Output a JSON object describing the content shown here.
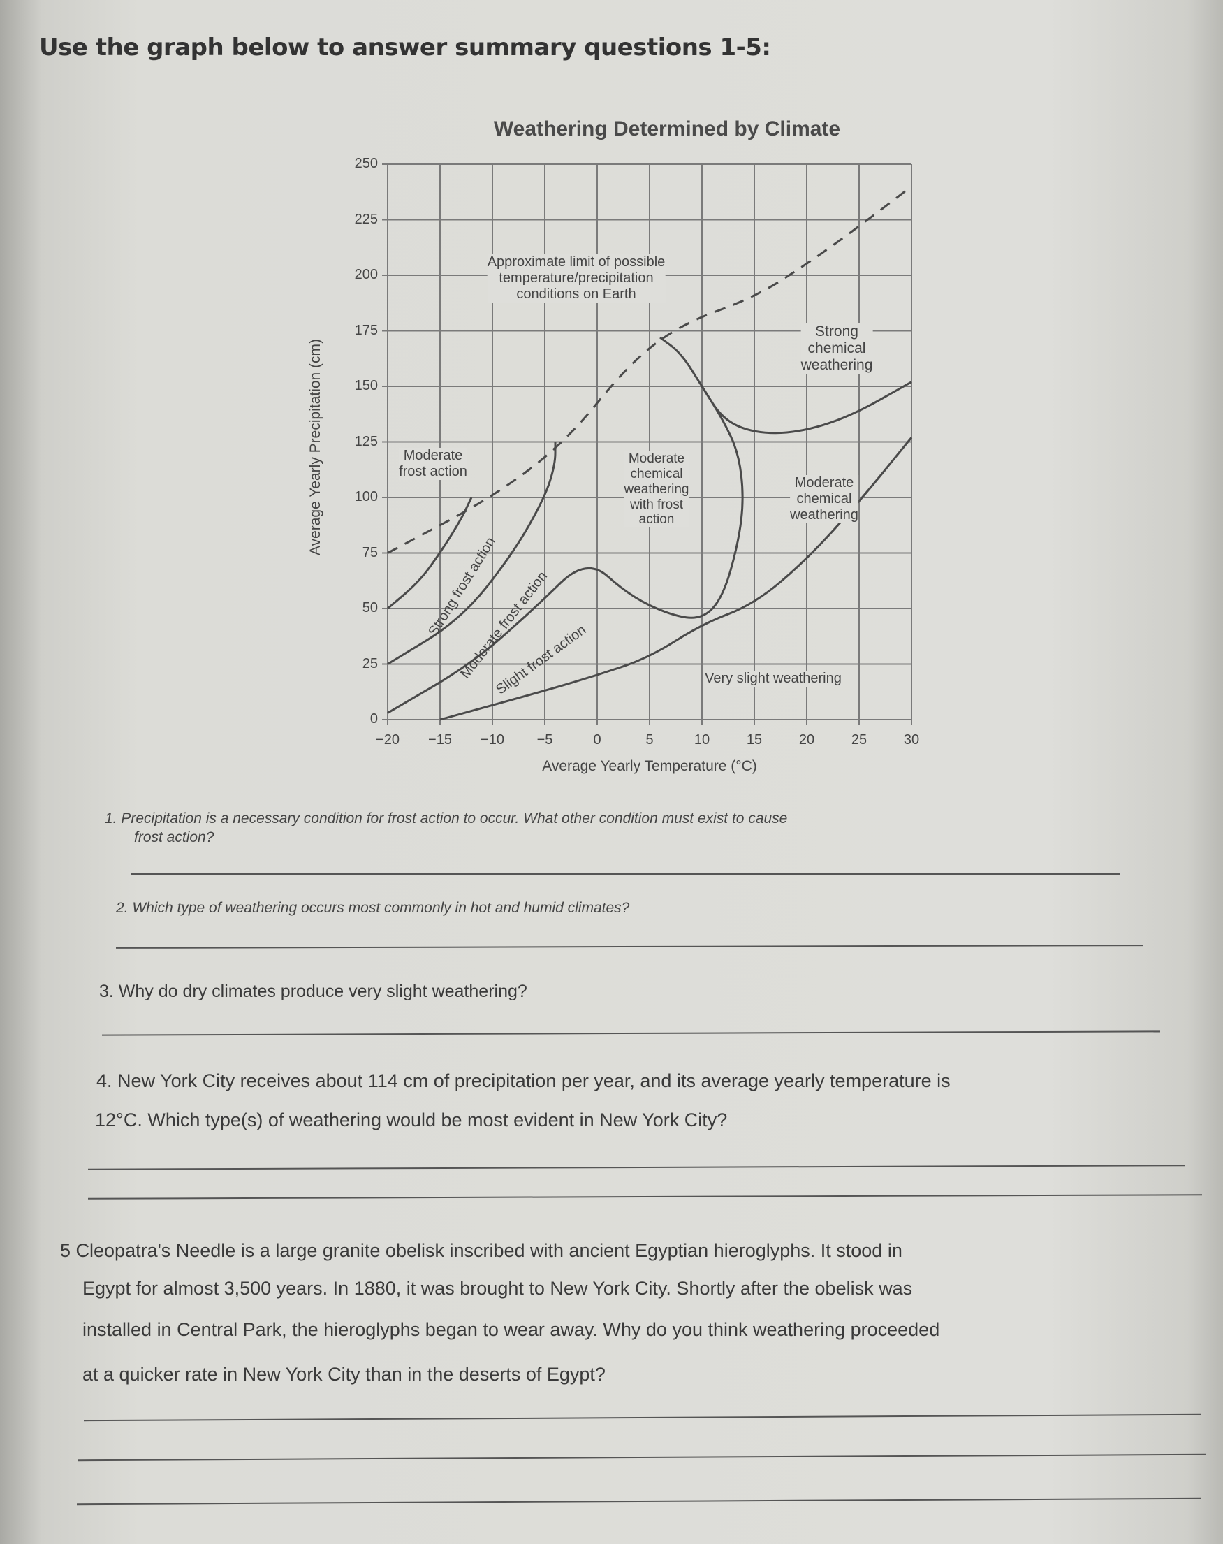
{
  "header": "Use the graph below to answer summary questions 1-5:",
  "chart_data": {
    "type": "line",
    "title": "Weathering Determined by Climate",
    "xlabel": "Average Yearly Temperature (°C)",
    "ylabel": "Average Yearly Precipitation (cm)",
    "xlim": [
      -20,
      30
    ],
    "ylim": [
      0,
      250
    ],
    "x_ticks": [
      "-20",
      "-15",
      "-10",
      "-5",
      "0",
      "5",
      "10",
      "15",
      "20",
      "25",
      "30"
    ],
    "y_ticks": [
      "0",
      "25",
      "50",
      "75",
      "100",
      "125",
      "150",
      "175",
      "200",
      "225",
      "250"
    ],
    "grid": true,
    "boundaries": [
      {
        "style": "dashed",
        "points": [
          [
            -20,
            75
          ],
          [
            -10,
            100
          ],
          [
            -3,
            125
          ],
          [
            3,
            160
          ],
          [
            8,
            178
          ],
          [
            15,
            190
          ],
          [
            20,
            205
          ],
          [
            25,
            222
          ],
          [
            30,
            240
          ]
        ]
      },
      {
        "style": "solid",
        "points": [
          [
            -20,
            50
          ],
          [
            -17,
            62
          ],
          [
            -15,
            75
          ],
          [
            -13,
            90
          ],
          [
            -12,
            100
          ]
        ]
      },
      {
        "style": "solid",
        "points": [
          [
            -20,
            25
          ],
          [
            -13,
            45
          ],
          [
            -8,
            75
          ],
          [
            -5,
            100
          ],
          [
            -4,
            115
          ],
          [
            -4,
            125
          ]
        ]
      },
      {
        "style": "solid",
        "points": [
          [
            -20,
            3
          ],
          [
            -12,
            25
          ],
          [
            -6,
            50
          ],
          [
            -1,
            73
          ],
          [
            3,
            56
          ],
          [
            7,
            47
          ],
          [
            10,
            45
          ],
          [
            12,
            55
          ],
          [
            13.5,
            80
          ],
          [
            14,
            100
          ],
          [
            13.5,
            120
          ],
          [
            12,
            135
          ],
          [
            10,
            150
          ],
          [
            8,
            165
          ],
          [
            6,
            172
          ]
        ]
      },
      {
        "style": "solid",
        "points": [
          [
            10,
            150
          ],
          [
            12,
            135
          ],
          [
            15,
            129
          ],
          [
            19,
            129
          ],
          [
            24,
            136
          ],
          [
            30,
            152
          ]
        ]
      },
      {
        "style": "solid",
        "points": [
          [
            -15,
            0
          ],
          [
            -5,
            13
          ],
          [
            0,
            20
          ],
          [
            5,
            28
          ],
          [
            10,
            43
          ],
          [
            15,
            52
          ],
          [
            20,
            72
          ],
          [
            25,
            98
          ],
          [
            30,
            127
          ]
        ]
      }
    ],
    "annotations": {
      "limit": [
        "Approximate limit of possible",
        "temperature/precipitation",
        "conditions on Earth"
      ],
      "strong_chemical": [
        "Strong",
        "chemical",
        "weathering"
      ],
      "moderate_frost": [
        "Moderate",
        "frost action"
      ],
      "moderate_chemical_frost": [
        "Moderate",
        "chemical",
        "weathering",
        "with frost",
        "action"
      ],
      "moderate_chemical": [
        "Moderate",
        "chemical",
        "weathering"
      ],
      "strong_frost": "Strong frost action",
      "moderate_frost_band": "Moderate frost action",
      "slight_frost": "Slight frost action",
      "very_slight": "Very slight weathering"
    }
  },
  "questions": [
    {
      "lines": [
        "1.  Precipitation is a necessary condition for frost action to occur. What other condition must exist to cause",
        "frost action?"
      ]
    },
    {
      "lines": [
        "2.  Which type of weathering occurs most commonly in hot and humid climates?"
      ]
    },
    {
      "lines": [
        "3.  Why do dry climates produce very slight weathering?"
      ]
    },
    {
      "lines": [
        "4.  New York City receives about 114 cm of precipitation per year, and its average yearly temperature is",
        "12°C. Which type(s) of weathering would be most evident in New York City?"
      ]
    },
    {
      "lines": [
        "5   Cleopatra's Needle is a large granite obelisk inscribed with ancient Egyptian hieroglyphs. It stood in",
        "Egypt for almost 3,500 years. In 1880, it was brought to New York City. Shortly after the obelisk was",
        "installed in Central Park, the hieroglyphs began to wear away. Why do you think weathering proceeded",
        "at a quicker rate in New York City than in the deserts of Egypt?"
      ]
    }
  ]
}
